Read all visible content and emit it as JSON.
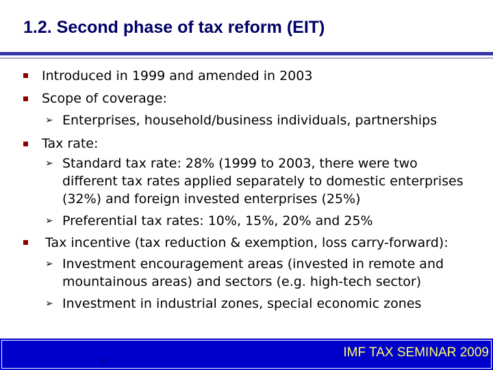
{
  "slide": {
    "title": "1.2. Second phase of tax reform (EIT)",
    "bullets": [
      "Introduced in 1999 and amended in 2003",
      "Scope of coverage:",
      "Tax rate:",
      "Tax incentive (tax reduction & exemption, loss carry-forward):"
    ],
    "sub_coverage": [
      "Enterprises, household/business individuals, partnerships"
    ],
    "sub_rate": {
      "standard_line1": "Standard tax rate: 28% (1999 to 2003, there were two",
      "standard_line2": "different tax rates applied separately to domestic enterprises",
      "standard_line3": "(32%) and foreign invested enterprises (25%)",
      "preferential": "Preferential tax rates: 10%, 15%, 20% and 25%"
    },
    "sub_incentive": {
      "encouragement_line1": "Investment encouragement areas (invested in remote and",
      "encouragement_line2": "mountainous areas) and sectors (e.g. high-tech sector)",
      "zones": "Investment in industrial zones, special economic zones"
    }
  },
  "footer": {
    "page_number": "7",
    "seminar": "IMF TAX SEMINAR 2009"
  },
  "colors": {
    "title": "#000066",
    "rule": "#3333aa",
    "bullet": "#8a0000",
    "footer_bg": "#0000cc",
    "footer_text": "#ffff66"
  }
}
